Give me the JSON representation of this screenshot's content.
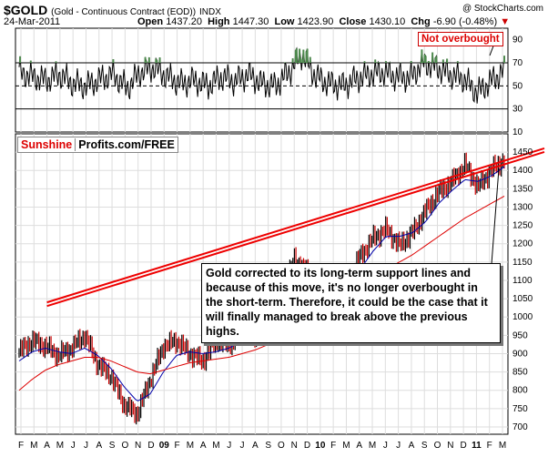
{
  "header": {
    "symbol": "$GOLD",
    "description": "(Gold - Continuous Contract (EOD))",
    "exchange": "INDX",
    "date": "24-Mar-2011",
    "open_label": "Open",
    "open_value": "1437.20",
    "high_label": "High",
    "high_value": "1447.30",
    "low_label": "Low",
    "low_value": "1423.90",
    "close_label": "Close",
    "close_value": "1430.10",
    "chg_label": "Chg",
    "chg_value": "-6.90 (-0.48%)",
    "watermark": "@ StockCharts.com"
  },
  "brand": {
    "part1": "Sunshine",
    "part2": "Profits.com/FREE"
  },
  "annotation_badge": "Not overbought",
  "note_text": "Gold corrected to its long-term support lines and because of this move, it's no longer overbought in the short-term. Therefore, it could be the case that it will finally managed to break above the previous highs.",
  "colors": {
    "price_up": "#000000",
    "price_down": "#cc0000",
    "sma_short": "#0000aa",
    "sma_long": "#dd0000",
    "support": "#ee0000",
    "rsi_overbought_fill": "#4e8a4e"
  },
  "chart_data": [
    {
      "type": "line",
      "title": "RSI",
      "ylim": [
        10,
        100
      ],
      "ytick_labels": [
        "90",
        "70",
        "50",
        "30",
        "10"
      ],
      "reference_lines": [
        70,
        50,
        30
      ],
      "annotations": [
        "Not overbought"
      ],
      "x": [
        "M",
        "A",
        "M",
        "J",
        "J",
        "A",
        "S",
        "O",
        "N",
        "D",
        "08",
        "F",
        "M",
        "A",
        "M",
        "J",
        "J",
        "A",
        "S",
        "O",
        "N",
        "D",
        "10",
        "F",
        "M",
        "A",
        "M",
        "J",
        "J",
        "A",
        "S",
        "O",
        "N",
        "D",
        "11",
        "F",
        "M"
      ],
      "values": [
        62,
        58,
        55,
        60,
        52,
        50,
        56,
        60,
        48,
        62,
        66,
        58,
        52,
        55,
        50,
        58,
        54,
        60,
        52,
        50,
        62,
        78,
        58,
        52,
        50,
        56,
        60,
        62,
        58,
        57,
        70,
        66,
        60,
        56,
        44,
        54,
        63
      ]
    },
    {
      "type": "line",
      "title": "Gold - Continuous Contract (EOD)",
      "ylim": [
        680,
        1500
      ],
      "ytick_labels": [
        "1450",
        "1400",
        "1350",
        "1300",
        "1250",
        "1200",
        "1150",
        "1100",
        "1050",
        "1000",
        "950",
        "900",
        "850",
        "800",
        "750",
        "700"
      ],
      "xtick_labels": [
        "F",
        "M",
        "A",
        "M",
        "J",
        "J",
        "A",
        "S",
        "O",
        "N",
        "D",
        "09",
        "F",
        "M",
        "A",
        "M",
        "J",
        "J",
        "A",
        "S",
        "O",
        "N",
        "D",
        "10",
        "F",
        "M",
        "A",
        "M",
        "J",
        "J",
        "A",
        "S",
        "O",
        "N",
        "D",
        "11",
        "F",
        "M"
      ],
      "series": [
        {
          "values": [
            905,
            935,
            920,
            895,
            915,
            950,
            870,
            840,
            760,
            735,
            830,
            920,
            935,
            900,
            880,
            935,
            925,
            955,
            945,
            1000,
            1060,
            1160,
            1120,
            1085,
            1110,
            1100,
            1165,
            1215,
            1240,
            1195,
            1230,
            1290,
            1340,
            1370,
            1415,
            1355,
            1400,
            1430
          ]
        },
        {
          "values": [
            880,
            905,
            915,
            905,
            900,
            915,
            895,
            860,
            810,
            770,
            790,
            850,
            895,
            905,
            900,
            905,
            915,
            935,
            945,
            965,
            1010,
            1080,
            1110,
            1105,
            1100,
            1110,
            1130,
            1180,
            1220,
            1220,
            1230,
            1260,
            1310,
            1345,
            1375,
            1370,
            1385,
            1410
          ]
        },
        {
          "values": [
            800,
            830,
            855,
            870,
            880,
            890,
            890,
            880,
            865,
            850,
            845,
            855,
            865,
            875,
            880,
            885,
            890,
            900,
            910,
            925,
            945,
            975,
            1000,
            1020,
            1040,
            1060,
            1080,
            1100,
            1130,
            1150,
            1170,
            1195,
            1220,
            1245,
            1270,
            1290,
            1310,
            1330
          ]
        }
      ],
      "support_lines": [
        {
          "from": {
            "x": "A",
            "y": 1030
          },
          "to": {
            "x": "M",
            "y": 1415
          }
        },
        {
          "from": {
            "x": "A",
            "y": 1040
          },
          "to": {
            "x": "M",
            "y": 1425
          }
        }
      ]
    }
  ]
}
